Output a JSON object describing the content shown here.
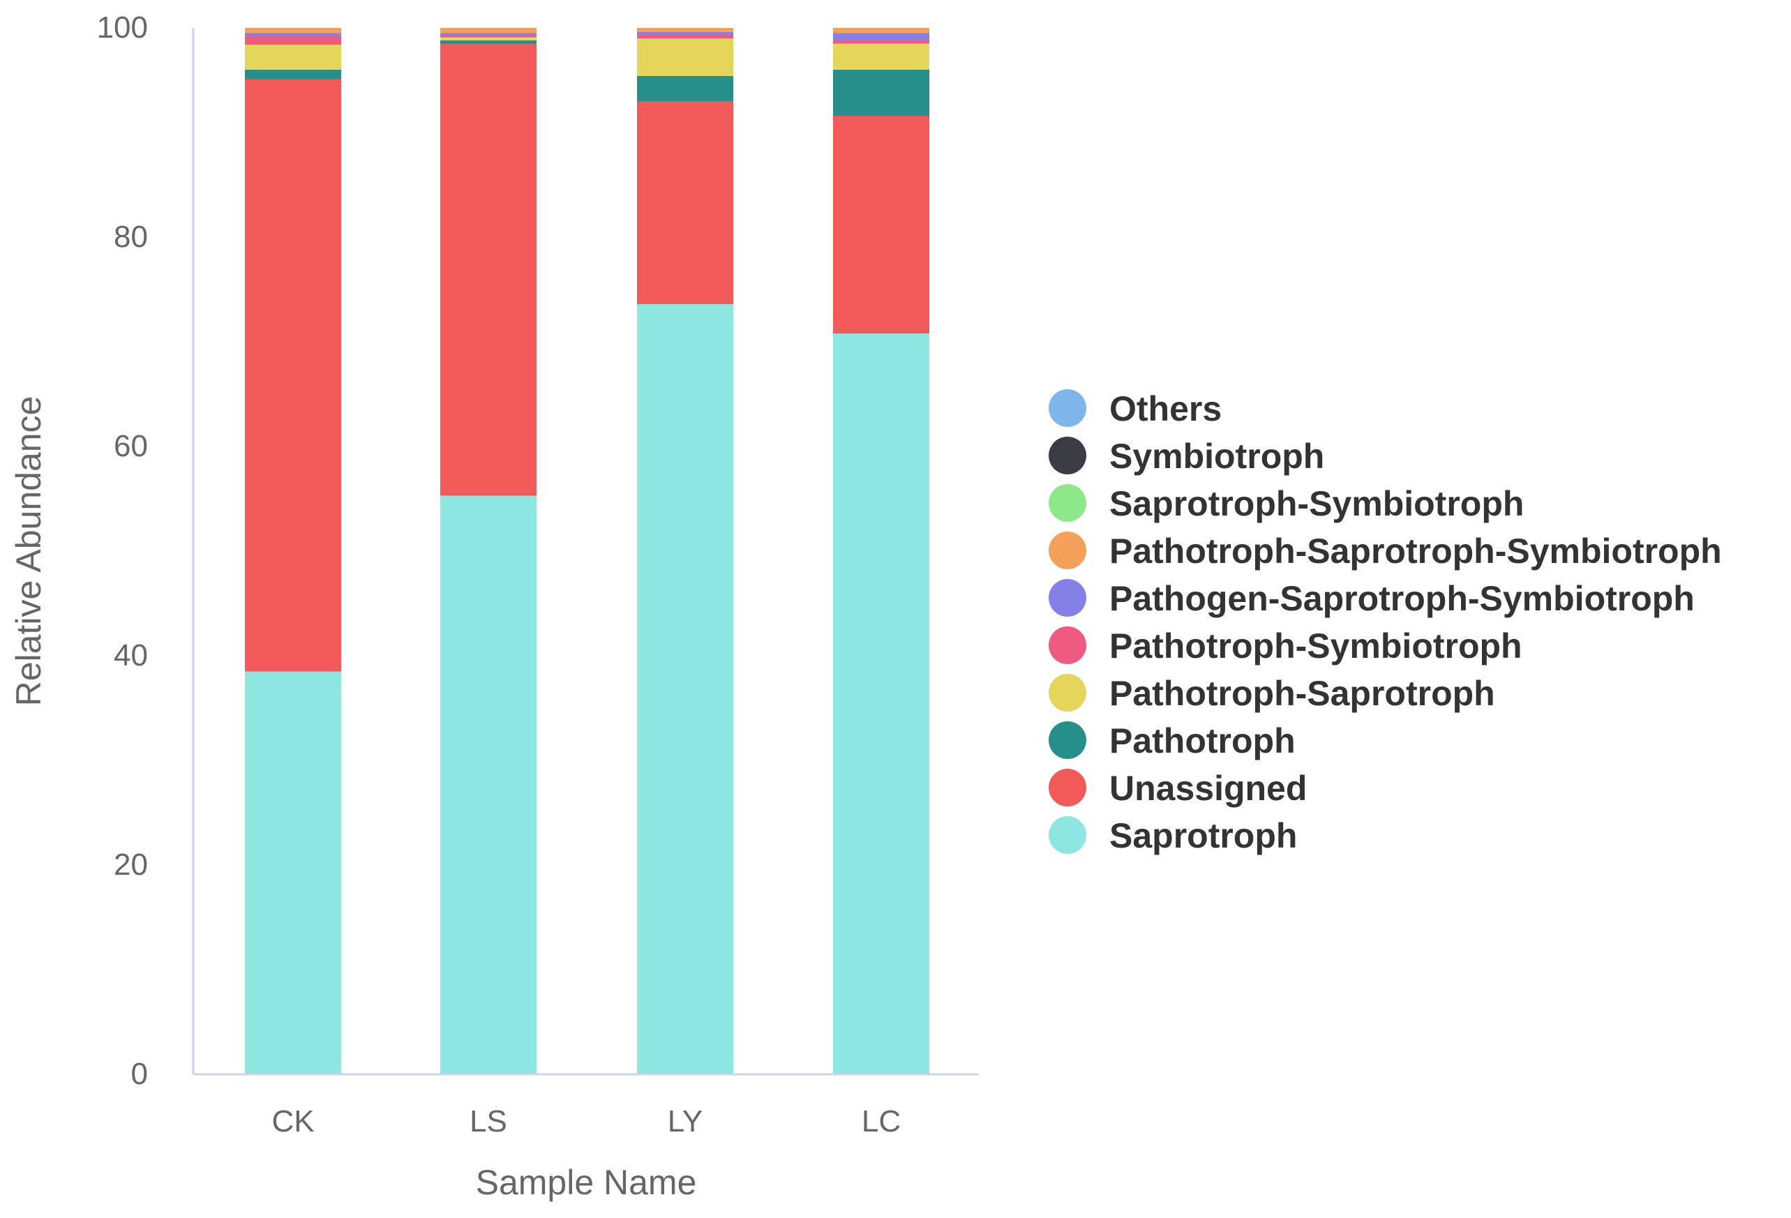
{
  "chart_data": {
    "type": "bar",
    "stacked": true,
    "xlabel": "Sample Name",
    "ylabel": "Relative Abundance",
    "ylim": [
      0,
      100
    ],
    "yticks": [
      0,
      20,
      40,
      60,
      80,
      100
    ],
    "categories": [
      "CK",
      "LS",
      "LY",
      "LC"
    ],
    "series": [
      {
        "name": "Saprotroph",
        "color": "#8ee6e0",
        "values": [
          38.5,
          55.3,
          73.6,
          70.8
        ]
      },
      {
        "name": "Unassigned",
        "color": "#f25a5a",
        "values": [
          56.6,
          43.2,
          19.4,
          20.8
        ]
      },
      {
        "name": "Pathotroph",
        "color": "#268f8a",
        "values": [
          0.9,
          0.3,
          2.4,
          4.4
        ]
      },
      {
        "name": "Pathotroph-Saprotroph",
        "color": "#e3d65a",
        "values": [
          2.4,
          0.3,
          3.6,
          2.5
        ]
      },
      {
        "name": "Pathotroph-Symbiotroph",
        "color": "#ef5a80",
        "values": [
          0.8,
          0.2,
          0.4,
          0.3
        ]
      },
      {
        "name": "Pathogen-Saprotroph-Symbiotroph",
        "color": "#8580e8",
        "values": [
          0.3,
          0.2,
          0.2,
          0.7
        ]
      },
      {
        "name": "Pathotroph-Saprotroph-Symbiotroph",
        "color": "#f5a05a",
        "values": [
          0.5,
          0.5,
          0.4,
          0.5
        ]
      },
      {
        "name": "Saprotroph-Symbiotroph",
        "color": "#8de88a",
        "values": [
          0,
          0,
          0,
          0
        ]
      },
      {
        "name": "Symbiotroph",
        "color": "#3c3c44",
        "values": [
          0,
          0,
          0,
          0
        ]
      },
      {
        "name": "Others",
        "color": "#7db6ea",
        "values": [
          0,
          0,
          0,
          0
        ]
      }
    ],
    "legend": {
      "position": "right",
      "order": [
        "Others",
        "Symbiotroph",
        "Saprotroph-Symbiotroph",
        "Pathotroph-Saprotroph-Symbiotroph",
        "Pathogen-Saprotroph-Symbiotroph",
        "Pathotroph-Symbiotroph",
        "Pathotroph-Saprotroph",
        "Pathotroph",
        "Unassigned",
        "Saprotroph"
      ]
    },
    "axis_color": "#ccd2ea"
  }
}
